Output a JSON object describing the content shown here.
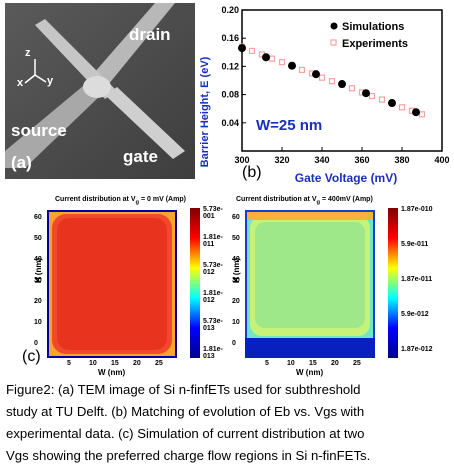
{
  "panel_a": {
    "label": "(a)",
    "drain": "drain",
    "source": "source",
    "gate": "gate",
    "axis_z": "z",
    "axis_x": "x",
    "axis_y": "y"
  },
  "panel_b": {
    "label": "(b)",
    "annotation": "W=25 nm",
    "legend_sim": "Simulations",
    "legend_exp": "Experiments"
  },
  "panel_c": {
    "label": "(c)",
    "left": {
      "title_prefix": "Current distribution at V",
      "title_sub": "g",
      "title_suffix": " = 0 mV (Amp)",
      "colorbar": [
        "5.73e-001",
        "1.81e-011",
        "5.73e-012",
        "1.81e-012",
        "5.73e-013",
        "1.81e-013"
      ]
    },
    "right": {
      "title_prefix": "Current distribution at V",
      "title_sub": "g",
      "title_suffix": " = 400mV (Amp)",
      "colorbar": [
        "1.87e-010",
        "5.9e-011",
        "1.87e-011",
        "5.9e-012",
        "1.87e-012"
      ]
    },
    "ylabel": "H (nm)",
    "xlabel": "W (nm)",
    "y_ticks": [
      "60",
      "50",
      "40",
      "30",
      "20",
      "10",
      "0"
    ],
    "x_ticks": [
      "5",
      "10",
      "15",
      "20",
      "25"
    ]
  },
  "caption": {
    "lines": [
      "Figure2: (a) TEM image of Si n-finfETs used for subthreshold",
      " study at TU Delft. (b) Matching of evolution of Eb vs. Vgs with",
      "experimental data. (c) Simulation of current distribution at  two",
      "Vgs showing the preferred charge flow regions in Si n-finFETs."
    ]
  },
  "chart_data": [
    {
      "type": "scatter",
      "title": "",
      "xlabel": "Gate Voltage (mV)",
      "ylabel": "Barrier Height, E (eV)",
      "xlim": [
        300,
        400
      ],
      "ylim": [
        0,
        0.2
      ],
      "x_ticks": [
        300,
        320,
        340,
        360,
        380,
        400
      ],
      "y_ticks": [
        0.04,
        0.08,
        0.12,
        0.16,
        0.2
      ],
      "series": [
        {
          "name": "Simulations",
          "color": "#000000",
          "x": [
            300,
            312,
            325,
            337,
            350,
            362,
            375,
            387
          ],
          "y": [
            0.146,
            0.133,
            0.121,
            0.109,
            0.095,
            0.082,
            0.068,
            0.055
          ]
        },
        {
          "name": "Experiments",
          "color": "#f4a3a3",
          "x": [
            300,
            305,
            310,
            315,
            320,
            325,
            330,
            335,
            340,
            345,
            350,
            355,
            360,
            365,
            370,
            375,
            380,
            385,
            390
          ],
          "y": [
            0.148,
            0.142,
            0.137,
            0.131,
            0.126,
            0.121,
            0.115,
            0.11,
            0.104,
            0.099,
            0.094,
            0.089,
            0.083,
            0.078,
            0.073,
            0.068,
            0.062,
            0.057,
            0.052
          ]
        }
      ]
    }
  ]
}
